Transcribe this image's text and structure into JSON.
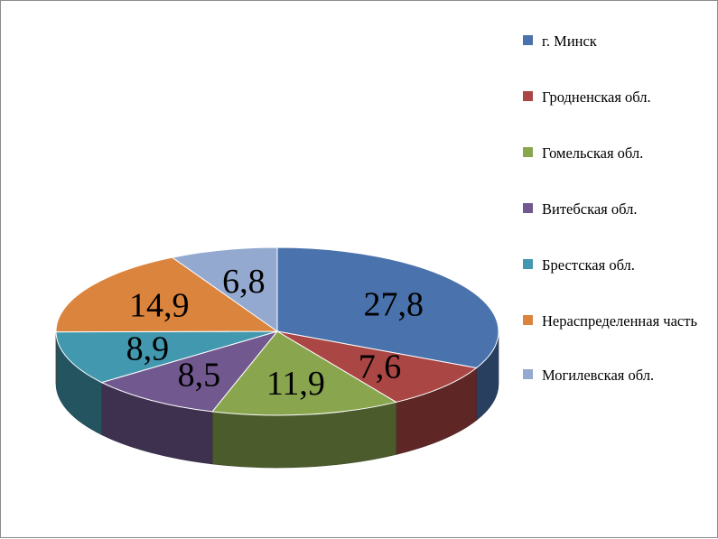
{
  "chart_data": {
    "type": "pie",
    "style": "3d",
    "legend_position": "right",
    "slices": [
      {
        "label": "г. Минск",
        "value": 27.8,
        "display": "27,8",
        "color": "#4A72AC"
      },
      {
        "label": "Гродненская обл.",
        "value": 7.6,
        "display": "7,6",
        "color": "#AA4644"
      },
      {
        "label": "Гомельская обл.",
        "value": 11.9,
        "display": "11,9",
        "color": "#89A54E"
      },
      {
        "label": "Витебская обл.",
        "value": 8.5,
        "display": "8,5",
        "color": "#71588F"
      },
      {
        "label": "Брестская обл.",
        "value": 8.9,
        "display": "8,9",
        "color": "#4198AF"
      },
      {
        "label": "Нераспределенная часть",
        "value": 14.9,
        "display": "14,9",
        "color": "#DB843D"
      },
      {
        "label": "Могилевская обл.",
        "value": 6.8,
        "display": "6,8",
        "color": "#93A9CF"
      }
    ]
  }
}
